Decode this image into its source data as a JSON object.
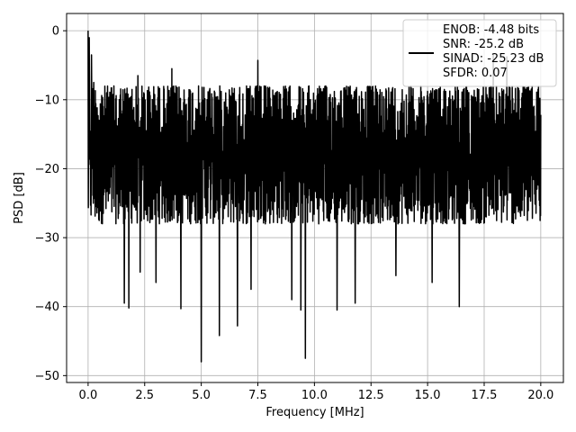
{
  "chart_data": {
    "type": "line",
    "title": "",
    "xlabel": "Frequency [MHz]",
    "ylabel": "PSD [dB]",
    "xlim": [
      -0.95,
      21.0
    ],
    "ylim": [
      -51.0,
      2.5
    ],
    "xticks": [
      0.0,
      2.5,
      5.0,
      7.5,
      10.0,
      12.5,
      15.0,
      17.5,
      20.0
    ],
    "xtick_labels": [
      "0.0",
      "2.5",
      "5.0",
      "7.5",
      "10.0",
      "12.5",
      "15.0",
      "17.5",
      "20.0"
    ],
    "yticks": [
      0,
      -10,
      -20,
      -30,
      -40,
      -50
    ],
    "ytick_labels": [
      "0",
      "−10",
      "−20",
      "−30",
      "−40",
      "−50"
    ],
    "grid": true,
    "legend_position": "top-right",
    "series": [
      {
        "name": "ENOB: -4.48 bits\nSNR: -25.2 dB\nSINAD: -25.23 dB\nSFDR: 0.07",
        "color": "#000000",
        "x_range": [
          0.0,
          20.0
        ],
        "noise_band_db": [
          -28.0,
          -8.0
        ],
        "peaks": [
          [
            0.0,
            0.0
          ],
          [
            0.05,
            -1.0
          ],
          [
            0.15,
            -3.5
          ],
          [
            0.25,
            -7.5
          ],
          [
            2.2,
            -6.5
          ],
          [
            3.7,
            -5.5
          ],
          [
            7.5,
            -4.3
          ],
          [
            9.6,
            -4.0
          ],
          [
            17.9,
            -3.5
          ],
          [
            18.5,
            -3.8
          ]
        ],
        "dips": [
          [
            1.6,
            -39.5
          ],
          [
            1.8,
            -40.2
          ],
          [
            2.3,
            -35.0
          ],
          [
            3.0,
            -36.5
          ],
          [
            4.1,
            -40.3
          ],
          [
            5.0,
            -48.0
          ],
          [
            5.8,
            -44.2
          ],
          [
            6.6,
            -42.8
          ],
          [
            7.2,
            -37.5
          ],
          [
            9.0,
            -39.0
          ],
          [
            9.4,
            -40.5
          ],
          [
            9.6,
            -47.5
          ],
          [
            11.0,
            -40.5
          ],
          [
            11.8,
            -39.5
          ],
          [
            13.6,
            -35.5
          ],
          [
            15.2,
            -36.5
          ],
          [
            16.4,
            -40.0
          ]
        ]
      }
    ],
    "legend": {
      "lines": [
        "ENOB: -4.48 bits",
        "SNR: -25.2 dB",
        "SINAD: -25.23 dB",
        "SFDR: 0.07"
      ]
    }
  }
}
